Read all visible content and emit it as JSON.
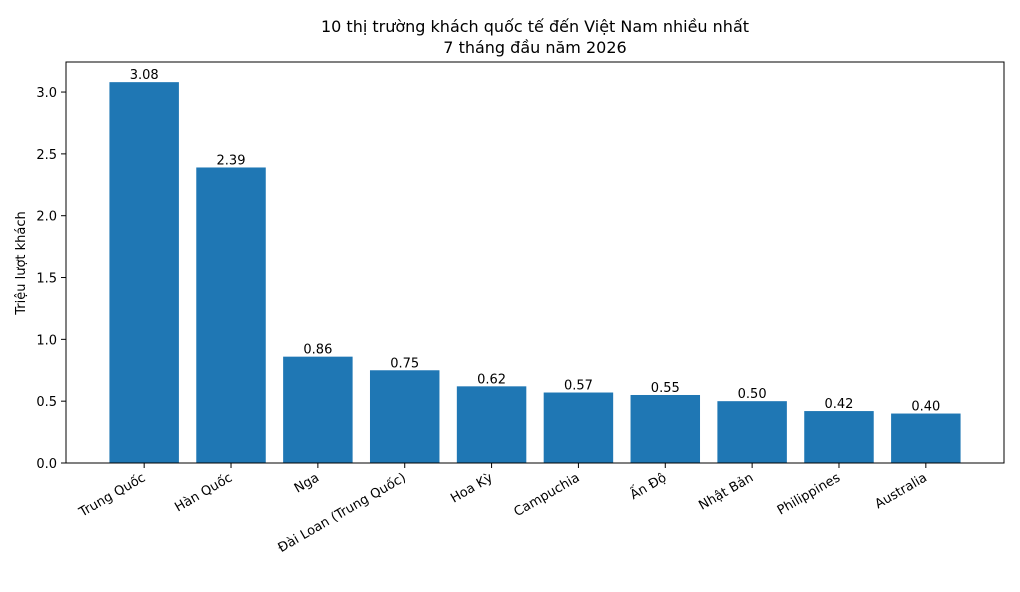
{
  "chart_data": {
    "type": "bar",
    "title": "10 thị trường khách quốc tế đến Việt Nam nhiều nhất",
    "subtitle": "7 tháng đầu năm 2026",
    "y_label": "Triệu lượt khách",
    "categories": [
      "Trung Quốc",
      "Hàn Quốc",
      "Nga",
      "Đài Loan (Trung Quốc)",
      "Hoa Kỳ",
      "Campuchia",
      "Ấn Độ",
      "Nhật Bản",
      "Philippines",
      "Australia"
    ],
    "values": [
      3.08,
      2.39,
      0.86,
      0.75,
      0.62,
      0.57,
      0.55,
      0.5,
      0.42,
      0.4
    ],
    "value_labels": [
      "3.08",
      "2.39",
      "0.86",
      "0.75",
      "0.62",
      "0.57",
      "0.55",
      "0.50",
      "0.42",
      "0.40"
    ],
    "color": "#1f77b4",
    "ylim": [
      0,
      3.243
    ],
    "yticks": [
      {
        "value": 0,
        "label": "0.0"
      },
      0.5,
      {
        "value": 1,
        "label": "1.0"
      },
      1.5,
      {
        "value": 2,
        "label": "2.0"
      },
      2.5,
      {
        "value": 3,
        "label": "3.0"
      }
    ],
    "grid": false
  }
}
